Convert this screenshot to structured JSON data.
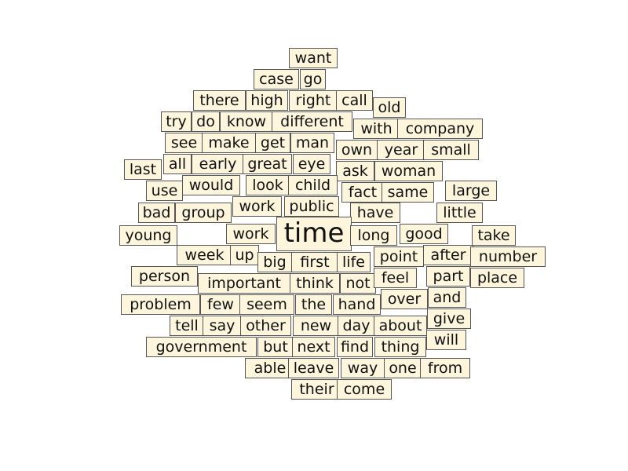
{
  "cloud": {
    "colors": {
      "box_fill": "#fdf5dc",
      "box_border": "#555555",
      "text": "#111111"
    },
    "words": [
      "want",
      "case",
      "go",
      "there",
      "high",
      "right",
      "call",
      "old",
      "try",
      "do",
      "know",
      "different",
      "with",
      "company",
      "see",
      "make",
      "get",
      "man",
      "own",
      "year",
      "small",
      "last",
      "all",
      "early",
      "great",
      "eye",
      "ask",
      "woman",
      "use",
      "would",
      "look",
      "child",
      "fact",
      "same",
      "large",
      "bad",
      "group",
      "work",
      "public",
      "have",
      "little",
      "young",
      "work",
      "time",
      "long",
      "good",
      "take",
      "week",
      "up",
      "big",
      "first",
      "life",
      "point",
      "after",
      "number",
      "person",
      "important",
      "think",
      "not",
      "feel",
      "part",
      "place",
      "problem",
      "few",
      "seem",
      "the",
      "hand",
      "over",
      "and",
      "tell",
      "say",
      "other",
      "new",
      "day",
      "about",
      "give",
      "government",
      "but",
      "next",
      "find",
      "thing",
      "will",
      "able",
      "leave",
      "way",
      "one",
      "from",
      "their",
      "come"
    ]
  }
}
